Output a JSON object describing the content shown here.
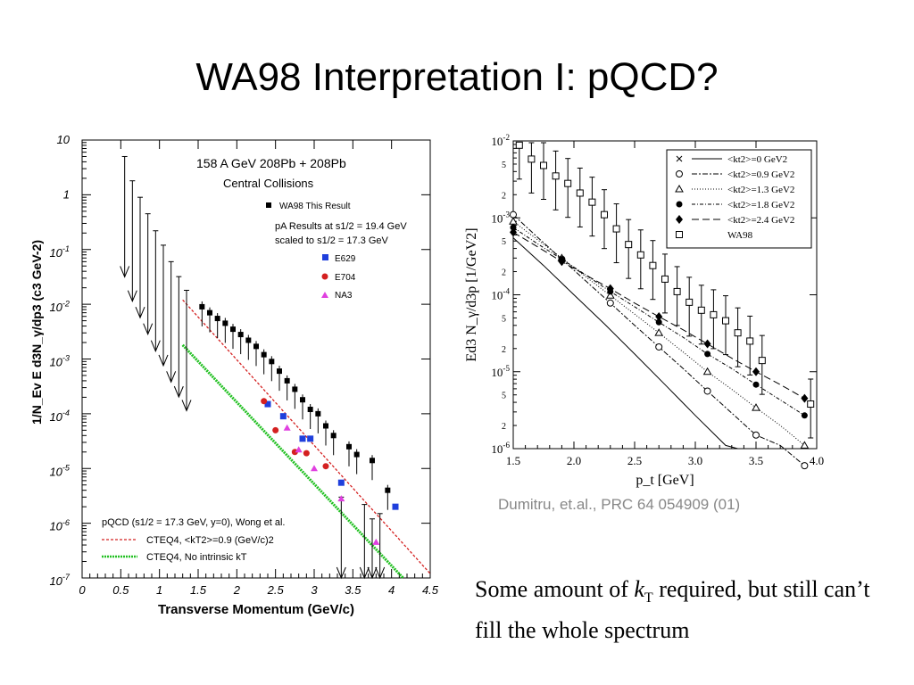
{
  "slide": {
    "title": "WA98 Interpretation I: pQCD?",
    "citation": "Dumitru, et.al., PRC 64 054909 (01)",
    "caption_part1": "Some amount of ",
    "caption_k": "k",
    "caption_sub": "T",
    "caption_part2": " required, but still can’t fill the whole spectrum"
  },
  "chart_data": [
    {
      "type": "scatter",
      "title": "158 A GeV 208Pb + 208Pb",
      "subtitle": "Central Collisions",
      "xlabel": "Transverse Momentum (GeV/c)",
      "ylabel": "1/N_Ev E d3N_γ/dp3 (c3 GeV-2)",
      "xlim": [
        0,
        4.5
      ],
      "ylim": [
        1e-07,
        10
      ],
      "yscale": "log",
      "xticks": [
        "0",
        "0.5",
        "1",
        "1.5",
        "2",
        "2.5",
        "3",
        "3.5",
        "4",
        "4.5"
      ],
      "yticks": [
        "10",
        "1",
        "10-1",
        "10-2",
        "10-3",
        "10-4",
        "10-5",
        "10-6",
        "10-7"
      ],
      "legend_top": {
        "wa98": "WA98 This Result",
        "pa_line1": "pA Results at s1/2 = 19.4 GeV",
        "pa_line2": "scaled to s1/2 = 17.3 GeV",
        "e629": "E629",
        "e704": "E704",
        "na3": "NA3"
      },
      "legend_bottom": {
        "header": "pQCD (s1/2 = 17.3 GeV, y=0), Wong et al.",
        "cteq_red": "CTEQ4, <kT2>=0.9 (GeV/c)2",
        "cteq_green": "CTEQ4, No intrinsic kT"
      },
      "colors": {
        "wa98": "#000000",
        "e629": "#1f3fdc",
        "e704": "#d42020",
        "na3": "#e040e0",
        "red_line": "#d42020",
        "green_line": "#22c022"
      },
      "upper_limits": [
        {
          "x": 0.55,
          "y": 5
        },
        {
          "x": 0.65,
          "y": 1.8
        },
        {
          "x": 0.75,
          "y": 0.9
        },
        {
          "x": 0.85,
          "y": 0.45
        },
        {
          "x": 0.95,
          "y": 0.22
        },
        {
          "x": 1.05,
          "y": 0.12
        },
        {
          "x": 1.15,
          "y": 0.06
        },
        {
          "x": 1.25,
          "y": 0.032
        },
        {
          "x": 1.35,
          "y": 0.018
        },
        {
          "x": 3.35,
          "y": 3e-06
        },
        {
          "x": 3.65,
          "y": 2.2e-06
        },
        {
          "x": 3.75,
          "y": 1.2e-06
        },
        {
          "x": 3.85,
          "y": 1.5e-06
        }
      ],
      "wa98_points": [
        {
          "x": 1.55,
          "y": 0.009
        },
        {
          "x": 1.65,
          "y": 0.007
        },
        {
          "x": 1.75,
          "y": 0.0055
        },
        {
          "x": 1.85,
          "y": 0.0045
        },
        {
          "x": 1.95,
          "y": 0.0035
        },
        {
          "x": 2.05,
          "y": 0.0028
        },
        {
          "x": 2.15,
          "y": 0.0022
        },
        {
          "x": 2.25,
          "y": 0.0017
        },
        {
          "x": 2.35,
          "y": 0.0012
        },
        {
          "x": 2.45,
          "y": 0.0009
        },
        {
          "x": 2.55,
          "y": 0.0006
        },
        {
          "x": 2.65,
          "y": 0.0004
        },
        {
          "x": 2.75,
          "y": 0.00028
        },
        {
          "x": 2.85,
          "y": 0.00018
        },
        {
          "x": 2.95,
          "y": 0.00012
        },
        {
          "x": 3.05,
          "y": 0.0001
        },
        {
          "x": 3.15,
          "y": 6e-05
        },
        {
          "x": 3.25,
          "y": 4e-05
        },
        {
          "x": 3.45,
          "y": 2.5e-05
        },
        {
          "x": 3.55,
          "y": 1.8e-05
        },
        {
          "x": 3.75,
          "y": 1.4e-05
        },
        {
          "x": 3.95,
          "y": 4e-06
        }
      ],
      "e629_points": [
        {
          "x": 2.4,
          "y": 0.00015
        },
        {
          "x": 2.6,
          "y": 9e-05
        },
        {
          "x": 2.85,
          "y": 3.5e-05
        },
        {
          "x": 2.95,
          "y": 3.5e-05
        },
        {
          "x": 3.35,
          "y": 5.5e-06
        },
        {
          "x": 4.05,
          "y": 2e-06
        }
      ],
      "e704_points": [
        {
          "x": 2.35,
          "y": 0.00017
        },
        {
          "x": 2.5,
          "y": 5e-05
        },
        {
          "x": 2.75,
          "y": 2e-05
        },
        {
          "x": 2.9,
          "y": 1.9e-05
        },
        {
          "x": 3.15,
          "y": 1.1e-05
        }
      ],
      "na3_points": [
        {
          "x": 2.65,
          "y": 5.5e-05
        },
        {
          "x": 2.8,
          "y": 2.2e-05
        },
        {
          "x": 3.0,
          "y": 1e-05
        },
        {
          "x": 3.35,
          "y": 2.8e-06
        },
        {
          "x": 3.8,
          "y": 4.5e-07
        }
      ],
      "lines": {
        "red": [
          {
            "x": 1.3,
            "y": 0.012
          },
          {
            "x": 4.5,
            "y": 1.2e-07
          }
        ],
        "green": [
          {
            "x": 1.3,
            "y": 0.0018
          },
          {
            "x": 4.15,
            "y": 1e-07
          }
        ]
      }
    },
    {
      "type": "line",
      "xlabel": "p_t [GeV]",
      "ylabel": "Ed3 N_γ/d3p [1/GeV2]",
      "xlim": [
        1.5,
        4.0
      ],
      "ylim": [
        1e-06,
        0.01
      ],
      "yscale": "log",
      "xticks": [
        "1.5",
        "2.0",
        "2.5",
        "3.0",
        "3.5",
        "4.0"
      ],
      "yticks": [
        "10-2",
        "10-3",
        "10-4",
        "10-5",
        "10-6"
      ],
      "minor_tick_labels": [
        "5",
        "2"
      ],
      "legend": [
        "<kt2>=0 GeV2",
        "<kt2>=0.9 GeV2",
        "<kt2>=1.3 GeV2",
        "<kt2>=1.8 GeV2",
        "<kt2>=2.4 GeV2",
        "WA98"
      ],
      "series": [
        {
          "name": "<kt2>=0 GeV2",
          "x": [
            1.5,
            1.75,
            2.0,
            2.25,
            2.5,
            2.75,
            3.0,
            3.25,
            3.35
          ],
          "y": [
            0.00055,
            0.00024,
            0.0001,
            4.2e-05,
            1.7e-05,
            6.8e-06,
            2.7e-06,
            1.1e-06,
            1e-06
          ]
        },
        {
          "name": "<kt2>=0.9 GeV2",
          "x": [
            1.5,
            1.7,
            1.9,
            2.1,
            2.3,
            2.5,
            2.7,
            2.9,
            3.1,
            3.3,
            3.5,
            3.7,
            3.9
          ],
          "y": [
            0.0011,
            0.00056,
            0.00029,
            0.00015,
            7.8e-05,
            4e-05,
            2.1e-05,
            1.1e-05,
            5.6e-06,
            2.9e-06,
            1.5e-06,
            1.1e-06,
            6e-07
          ]
        },
        {
          "name": "<kt2>=1.3 GeV2",
          "x": [
            1.5,
            1.7,
            1.9,
            2.1,
            2.3,
            2.5,
            2.7,
            2.9,
            3.1,
            3.3,
            3.5,
            3.7,
            3.9
          ],
          "y": [
            0.0009,
            0.00052,
            0.0003,
            0.00017,
            9.8e-05,
            5.6e-05,
            3.2e-05,
            1.8e-05,
            1e-05,
            5.9e-06,
            3.4e-06,
            2e-06,
            1.1e-06
          ]
        },
        {
          "name": "<kt2>=1.8 GeV2",
          "x": [
            1.5,
            1.7,
            1.9,
            2.1,
            2.3,
            2.5,
            2.7,
            2.9,
            3.1,
            3.3,
            3.5,
            3.7,
            3.9
          ],
          "y": [
            0.00075,
            0.00046,
            0.00029,
            0.00018,
            0.00011,
            7e-05,
            4.4e-05,
            2.8e-05,
            1.7e-05,
            1.1e-05,
            6.8e-06,
            4.3e-06,
            2.7e-06
          ]
        },
        {
          "name": "<kt2>=2.4 GeV2",
          "x": [
            1.5,
            1.7,
            1.9,
            2.1,
            2.3,
            2.5,
            2.7,
            2.9,
            3.1,
            3.3,
            3.5,
            3.7,
            3.9
          ],
          "y": [
            0.00065,
            0.00042,
            0.00027,
            0.00018,
            0.00012,
            7.8e-05,
            5.2e-05,
            3.5e-05,
            2.3e-05,
            1.5e-05,
            1e-05,
            6.8e-06,
            4.5e-06
          ]
        },
        {
          "name": "WA98",
          "x": [
            1.55,
            1.65,
            1.75,
            1.85,
            1.95,
            2.05,
            2.15,
            2.25,
            2.35,
            2.45,
            2.55,
            2.65,
            2.75,
            2.85,
            2.95,
            3.05,
            3.15,
            3.25,
            3.35,
            3.45,
            3.55,
            3.95
          ],
          "y": [
            0.0088,
            0.0058,
            0.0048,
            0.0035,
            0.0028,
            0.0021,
            0.0016,
            0.0011,
            0.00072,
            0.00045,
            0.00033,
            0.00024,
            0.00016,
            0.00011,
            8e-05,
            6.3e-05,
            5.5e-05,
            4.6e-05,
            3.2e-05,
            2.5e-05,
            1.4e-05,
            3.8e-06
          ]
        }
      ]
    }
  ]
}
